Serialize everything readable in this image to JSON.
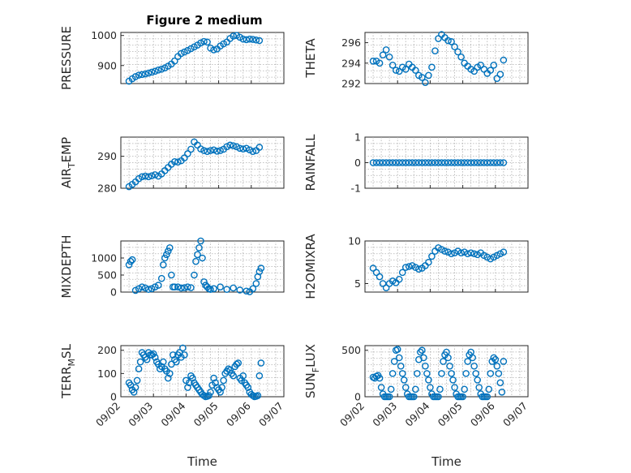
{
  "figure": {
    "title": "Figure 2 medium",
    "colors": {
      "marker": "#0072BD",
      "axis": "#262626",
      "grid": "#b0b0b0",
      "background": "#ffffff"
    }
  },
  "chart_data": [
    {
      "type": "scatter",
      "ylabel": "PRESSURE",
      "title": "Figure 2 medium",
      "xlim": [
        0,
        5
      ],
      "ylim": [
        840,
        1010
      ],
      "yticks": [
        900,
        1000
      ],
      "ytick_labels": [
        "900",
        "1000"
      ],
      "xticks": [],
      "xlabel": "",
      "grid": true,
      "x": [
        0.0,
        0.1,
        0.2,
        0.3,
        0.4,
        0.5,
        0.6,
        0.7,
        0.8,
        0.9,
        1.0,
        1.1,
        1.2,
        1.3,
        1.4,
        1.5,
        1.6,
        1.7,
        1.8,
        1.9,
        2.0,
        2.1,
        2.2,
        2.3,
        2.4,
        2.5,
        2.6,
        2.7,
        2.8,
        2.9,
        3.0,
        3.1,
        3.2,
        3.3,
        3.4,
        3.5,
        3.6,
        3.7,
        3.8,
        3.9,
        4.0
      ],
      "y": [
        848,
        856,
        863,
        868,
        870,
        872,
        875,
        878,
        881,
        885,
        888,
        892,
        898,
        905,
        915,
        930,
        940,
        945,
        950,
        956,
        962,
        968,
        975,
        980,
        978,
        958,
        952,
        955,
        965,
        972,
        978,
        990,
        998,
        1000,
        994,
        988,
        986,
        988,
        987,
        985,
        983
      ]
    },
    {
      "type": "scatter",
      "ylabel": "THETA",
      "xlim": [
        0,
        5
      ],
      "ylim": [
        292,
        297
      ],
      "yticks": [
        292,
        294,
        296
      ],
      "ytick_labels": [
        "292",
        "294",
        "296"
      ],
      "xticks": [],
      "xlabel": "",
      "grid": true,
      "x": [
        0.0,
        0.1,
        0.2,
        0.3,
        0.4,
        0.5,
        0.6,
        0.7,
        0.8,
        0.9,
        1.0,
        1.1,
        1.2,
        1.3,
        1.4,
        1.5,
        1.6,
        1.7,
        1.8,
        1.9,
        2.0,
        2.1,
        2.2,
        2.3,
        2.4,
        2.5,
        2.6,
        2.7,
        2.8,
        2.9,
        3.0,
        3.1,
        3.2,
        3.3,
        3.4,
        3.5,
        3.6,
        3.7,
        3.8,
        3.9,
        4.0
      ],
      "y": [
        294.2,
        294.2,
        294.0,
        294.8,
        295.3,
        294.6,
        293.8,
        293.3,
        293.2,
        293.6,
        293.4,
        293.9,
        293.6,
        293.3,
        292.8,
        292.6,
        292.1,
        292.8,
        293.6,
        295.2,
        296.4,
        296.8,
        296.5,
        296.2,
        296.1,
        295.6,
        295.1,
        294.6,
        294.0,
        293.7,
        293.4,
        293.2,
        293.6,
        293.8,
        293.4,
        293.0,
        293.3,
        293.8,
        292.5,
        292.9,
        294.3
      ]
    },
    {
      "type": "scatter",
      "ylabel": "AIR_TEMP",
      "xlim": [
        0,
        5
      ],
      "ylim": [
        280,
        296
      ],
      "yticks": [
        280,
        290
      ],
      "ytick_labels": [
        "280",
        "290"
      ],
      "xticks": [],
      "xlabel": "",
      "grid": true,
      "x": [
        0.0,
        0.1,
        0.2,
        0.3,
        0.4,
        0.5,
        0.6,
        0.7,
        0.8,
        0.9,
        1.0,
        1.1,
        1.2,
        1.3,
        1.4,
        1.5,
        1.6,
        1.7,
        1.8,
        1.9,
        2.0,
        2.1,
        2.2,
        2.3,
        2.4,
        2.5,
        2.6,
        2.7,
        2.8,
        2.9,
        3.0,
        3.1,
        3.2,
        3.3,
        3.4,
        3.5,
        3.6,
        3.7,
        3.8,
        3.9,
        4.0
      ],
      "y": [
        280.5,
        281.2,
        282.0,
        283.0,
        283.6,
        283.8,
        283.6,
        283.9,
        284.2,
        283.8,
        284.5,
        285.5,
        286.5,
        287.5,
        288.3,
        288.2,
        288.6,
        289.5,
        290.8,
        292.2,
        294.5,
        293.5,
        292.3,
        291.8,
        291.5,
        291.8,
        292.0,
        291.6,
        291.8,
        292.2,
        293.0,
        293.5,
        293.3,
        293.0,
        292.5,
        292.3,
        292.5,
        292.0,
        291.5,
        291.8,
        292.8
      ]
    },
    {
      "type": "scatter",
      "ylabel": "RAINFALL",
      "xlim": [
        0,
        5
      ],
      "ylim": [
        -1,
        1
      ],
      "yticks": [
        -1,
        0,
        1
      ],
      "ytick_labels": [
        "-1",
        "0",
        "1"
      ],
      "xticks": [],
      "xlabel": "",
      "grid": true,
      "x": [
        0.0,
        0.1,
        0.2,
        0.3,
        0.4,
        0.5,
        0.6,
        0.7,
        0.8,
        0.9,
        1.0,
        1.1,
        1.2,
        1.3,
        1.4,
        1.5,
        1.6,
        1.7,
        1.8,
        1.9,
        2.0,
        2.1,
        2.2,
        2.3,
        2.4,
        2.5,
        2.6,
        2.7,
        2.8,
        2.9,
        3.0,
        3.1,
        3.2,
        3.3,
        3.4,
        3.5,
        3.6,
        3.7,
        3.8,
        3.9,
        4.0
      ],
      "y": [
        0,
        0,
        0,
        0,
        0,
        0,
        0,
        0,
        0,
        0,
        0,
        0,
        0,
        0,
        0,
        0,
        0,
        0,
        0,
        0,
        0,
        0,
        0,
        0,
        0,
        0,
        0,
        0,
        0,
        0,
        0,
        0,
        0,
        0,
        0,
        0,
        0,
        0,
        0,
        0,
        0
      ]
    },
    {
      "type": "scatter",
      "ylabel": "MIXDEPTH",
      "xlim": [
        0,
        5
      ],
      "ylim": [
        0,
        1500
      ],
      "yticks": [
        0,
        500,
        1000
      ],
      "ytick_labels": [
        "0",
        "500",
        "1000"
      ],
      "xticks": [],
      "xlabel": "",
      "grid": true,
      "x": [
        0.0,
        0.05,
        0.1,
        0.2,
        0.3,
        0.4,
        0.5,
        0.6,
        0.7,
        0.8,
        0.9,
        1.0,
        1.05,
        1.1,
        1.15,
        1.2,
        1.25,
        1.3,
        1.35,
        1.4,
        1.5,
        1.6,
        1.7,
        1.8,
        1.9,
        2.0,
        2.05,
        2.1,
        2.15,
        2.2,
        2.25,
        2.3,
        2.35,
        2.4,
        2.45,
        2.5,
        2.6,
        2.8,
        3.0,
        3.2,
        3.4,
        3.6,
        3.7,
        3.8,
        3.9,
        3.95,
        4.0,
        4.05
      ],
      "y": [
        800,
        900,
        950,
        50,
        100,
        150,
        120,
        80,
        100,
        150,
        200,
        400,
        800,
        1000,
        1100,
        1200,
        1300,
        500,
        150,
        150,
        150,
        120,
        130,
        150,
        130,
        500,
        900,
        1100,
        1300,
        1500,
        1000,
        300,
        200,
        150,
        100,
        80,
        100,
        150,
        80,
        120,
        60,
        30,
        10,
        100,
        250,
        450,
        600,
        700
      ]
    },
    {
      "type": "scatter",
      "ylabel": "H2OMIXRA",
      "xlim": [
        0,
        5
      ],
      "ylim": [
        4,
        10
      ],
      "yticks": [
        5,
        10
      ],
      "ytick_labels": [
        "5",
        "10"
      ],
      "xticks": [],
      "xlabel": "",
      "grid": true,
      "x": [
        0.0,
        0.1,
        0.2,
        0.3,
        0.4,
        0.5,
        0.6,
        0.7,
        0.8,
        0.9,
        1.0,
        1.1,
        1.2,
        1.3,
        1.4,
        1.5,
        1.6,
        1.7,
        1.8,
        1.9,
        2.0,
        2.1,
        2.2,
        2.3,
        2.4,
        2.5,
        2.6,
        2.7,
        2.8,
        2.9,
        3.0,
        3.1,
        3.2,
        3.3,
        3.4,
        3.5,
        3.6,
        3.7,
        3.8,
        3.9,
        4.0
      ],
      "y": [
        6.8,
        6.3,
        5.8,
        5.0,
        4.5,
        5.0,
        5.3,
        5.1,
        5.5,
        6.3,
        6.9,
        7.0,
        7.1,
        6.9,
        6.7,
        6.8,
        7.1,
        7.5,
        8.2,
        8.8,
        9.2,
        9.0,
        8.8,
        8.7,
        8.5,
        8.6,
        8.8,
        8.6,
        8.7,
        8.5,
        8.6,
        8.5,
        8.4,
        8.6,
        8.3,
        8.1,
        7.9,
        8.1,
        8.3,
        8.5,
        8.7
      ]
    },
    {
      "type": "scatter",
      "ylabel": "TERR_MSL",
      "xlim": [
        0,
        5
      ],
      "ylim": [
        0,
        220
      ],
      "yticks": [
        0,
        100,
        200
      ],
      "ytick_labels": [
        "0",
        "100",
        "200"
      ],
      "xticks": [
        0,
        1,
        2,
        3,
        4,
        5
      ],
      "xtick_labels": [
        "09/02",
        "09/03",
        "09/04",
        "09/05",
        "09/06",
        "09/07"
      ],
      "xlabel": "Time",
      "grid": true,
      "x": [
        0.0,
        0.05,
        0.1,
        0.15,
        0.2,
        0.25,
        0.3,
        0.35,
        0.4,
        0.45,
        0.5,
        0.55,
        0.6,
        0.65,
        0.7,
        0.75,
        0.8,
        0.85,
        0.9,
        0.95,
        1.0,
        1.05,
        1.1,
        1.15,
        1.2,
        1.25,
        1.3,
        1.35,
        1.4,
        1.45,
        1.5,
        1.55,
        1.6,
        1.65,
        1.7,
        1.75,
        1.8,
        1.85,
        1.9,
        1.95,
        2.0,
        2.05,
        2.1,
        2.15,
        2.2,
        2.25,
        2.3,
        2.35,
        2.4,
        2.45,
        2.5,
        2.55,
        2.6,
        2.65,
        2.7,
        2.75,
        2.8,
        2.85,
        2.9,
        2.95,
        3.0,
        3.05,
        3.1,
        3.15,
        3.2,
        3.25,
        3.3,
        3.35,
        3.4,
        3.45,
        3.5,
        3.55,
        3.6,
        3.65,
        3.7,
        3.75,
        3.8,
        3.85,
        3.9,
        3.95,
        4.0,
        4.05
      ],
      "y": [
        60,
        50,
        30,
        20,
        40,
        70,
        120,
        150,
        190,
        180,
        170,
        160,
        190,
        180,
        180,
        185,
        170,
        150,
        140,
        120,
        130,
        150,
        120,
        110,
        80,
        100,
        140,
        180,
        160,
        150,
        180,
        190,
        170,
        210,
        180,
        70,
        40,
        60,
        90,
        80,
        60,
        50,
        40,
        30,
        20,
        10,
        5,
        0,
        2,
        5,
        20,
        50,
        80,
        60,
        40,
        30,
        20,
        40,
        70,
        100,
        110,
        120,
        115,
        100,
        90,
        130,
        140,
        145,
        80,
        70,
        90,
        60,
        50,
        40,
        20,
        10,
        5,
        0,
        2,
        5,
        90,
        145
      ]
    },
    {
      "type": "scatter",
      "ylabel": "SUN_FLUX",
      "xlim": [
        0,
        5
      ],
      "ylim": [
        0,
        550
      ],
      "yticks": [
        0,
        500
      ],
      "ytick_labels": [
        "0",
        "500"
      ],
      "xticks": [
        0,
        1,
        2,
        3,
        4,
        5
      ],
      "xtick_labels": [
        "09/02",
        "09/03",
        "09/04",
        "09/05",
        "09/06",
        "09/07"
      ],
      "xlabel": "Time",
      "grid": true,
      "x": [
        0.0,
        0.05,
        0.1,
        0.15,
        0.2,
        0.25,
        0.3,
        0.35,
        0.4,
        0.45,
        0.5,
        0.55,
        0.6,
        0.65,
        0.7,
        0.75,
        0.8,
        0.85,
        0.9,
        0.95,
        1.0,
        1.05,
        1.1,
        1.15,
        1.2,
        1.25,
        1.3,
        1.35,
        1.4,
        1.45,
        1.5,
        1.55,
        1.6,
        1.65,
        1.7,
        1.75,
        1.8,
        1.85,
        1.9,
        1.95,
        2.0,
        2.05,
        2.1,
        2.15,
        2.2,
        2.25,
        2.3,
        2.35,
        2.4,
        2.45,
        2.5,
        2.55,
        2.6,
        2.65,
        2.7,
        2.75,
        2.8,
        2.85,
        2.9,
        2.95,
        3.0,
        3.05,
        3.1,
        3.15,
        3.2,
        3.25,
        3.3,
        3.35,
        3.4,
        3.45,
        3.5,
        3.55,
        3.6,
        3.65,
        3.7,
        3.75,
        3.8,
        3.85,
        3.9,
        3.95,
        4.0
      ],
      "y": [
        210,
        200,
        220,
        230,
        200,
        100,
        30,
        0,
        0,
        0,
        0,
        80,
        250,
        380,
        500,
        510,
        420,
        330,
        250,
        180,
        100,
        30,
        0,
        0,
        0,
        0,
        80,
        250,
        400,
        480,
        500,
        420,
        330,
        250,
        180,
        100,
        30,
        0,
        0,
        0,
        0,
        80,
        250,
        380,
        450,
        480,
        420,
        330,
        250,
        180,
        100,
        30,
        0,
        0,
        0,
        0,
        80,
        250,
        380,
        450,
        480,
        420,
        330,
        250,
        180,
        100,
        30,
        0,
        0,
        0,
        0,
        80,
        250,
        380,
        420,
        400,
        330,
        250,
        150,
        50,
        380
      ]
    }
  ]
}
